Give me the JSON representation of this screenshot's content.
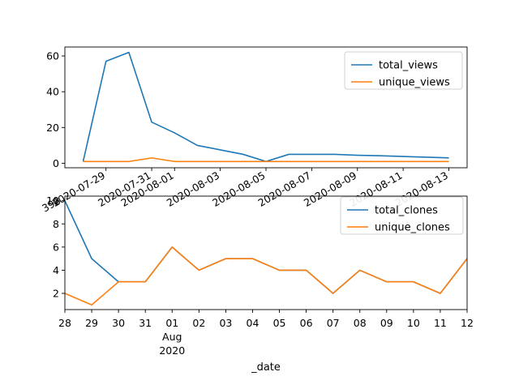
{
  "colors": {
    "series1": "#1f77b4",
    "series2": "#ff7f0e"
  },
  "chart_data": [
    {
      "type": "line",
      "title": "",
      "xlabel": "",
      "ylabel": "",
      "ylim": [
        -2.5,
        65
      ],
      "y_ticks": [
        0,
        20,
        40,
        60
      ],
      "x_tick_labels": [
        "2020-07-29",
        "2020-07-31",
        "2020-08-01",
        "2020-08-03",
        "2020-08-05",
        "2020-08-07",
        "2020-08-09",
        "2020-08-11",
        "2020-08-13"
      ],
      "x_tick_label_overflow": "398",
      "legend": "top-right",
      "grid": false,
      "x": [
        "2020-07-28",
        "2020-07-29",
        "2020-07-30",
        "2020-07-31",
        "2020-08-01",
        "2020-08-02",
        "2020-08-03",
        "2020-08-04",
        "2020-08-05",
        "2020-08-06",
        "2020-08-07",
        "2020-08-08",
        "2020-08-09",
        "2020-08-10",
        "2020-08-11",
        "2020-08-12",
        "2020-08-13"
      ],
      "series": [
        {
          "name": "total_views",
          "values": [
            1,
            57,
            62,
            23,
            17,
            10,
            7.5,
            5,
            1,
            5,
            5,
            5,
            4.5,
            4.2,
            3.8,
            3.4,
            3
          ]
        },
        {
          "name": "unique_views",
          "values": [
            1,
            1,
            1,
            3,
            1,
            1,
            1,
            1,
            1,
            1,
            1,
            1,
            1,
            1,
            1,
            1,
            1
          ]
        }
      ]
    },
    {
      "type": "line",
      "title": "",
      "xlabel": "_date",
      "ylabel": "",
      "ylim": [
        0.6,
        10.4
      ],
      "y_ticks": [
        2,
        4,
        6,
        8,
        10
      ],
      "x_tick_labels": [
        "28",
        "29",
        "30",
        "31",
        "01",
        "02",
        "03",
        "04",
        "05",
        "06",
        "07",
        "08",
        "09",
        "10",
        "11",
        "12"
      ],
      "x_month_label": "Aug",
      "x_year_label": "2020",
      "legend": "top-right",
      "grid": false,
      "x": [
        "2020-07-28",
        "2020-07-29",
        "2020-07-30",
        "2020-07-31",
        "2020-08-01",
        "2020-08-02",
        "2020-08-03",
        "2020-08-04",
        "2020-08-05",
        "2020-08-06",
        "2020-08-07",
        "2020-08-08",
        "2020-08-09",
        "2020-08-10",
        "2020-08-11",
        "2020-08-12"
      ],
      "series": [
        {
          "name": "total_clones",
          "values": [
            10,
            5,
            3,
            3,
            6,
            4,
            5,
            5,
            4,
            4,
            2,
            4,
            3,
            3,
            2,
            5
          ]
        },
        {
          "name": "unique_clones",
          "values": [
            2,
            1,
            3,
            3,
            6,
            4,
            5,
            5,
            4,
            4,
            2,
            4,
            3,
            3,
            2,
            5
          ]
        }
      ]
    }
  ]
}
